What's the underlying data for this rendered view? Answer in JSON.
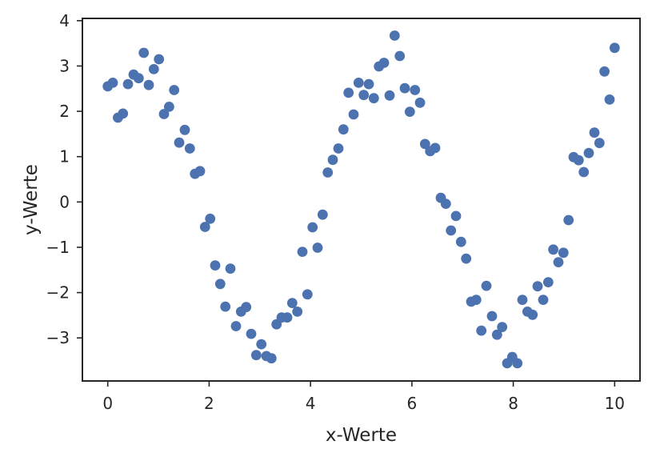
{
  "chart_data": {
    "type": "scatter",
    "title": "",
    "xlabel": "x-Werte",
    "ylabel": "y-Werte",
    "xlim": [
      -0.5,
      10.5
    ],
    "ylim": [
      -3.95,
      4.05
    ],
    "xticks": [
      0,
      2,
      4,
      6,
      8,
      10
    ],
    "xtick_labels": [
      "0",
      "2",
      "4",
      "6",
      "8",
      "10"
    ],
    "yticks": [
      -3,
      -2,
      -1,
      0,
      1,
      2,
      3,
      4
    ],
    "ytick_labels": [
      "−3",
      "−2",
      "−1",
      "0",
      "1",
      "2",
      "3",
      "4"
    ],
    "grid": false,
    "marker_color": "#4c72b0",
    "series": [
      {
        "x": [
          0.0,
          0.1,
          0.2,
          0.3,
          0.4,
          0.51,
          0.61,
          0.71,
          0.81,
          0.91,
          1.01,
          1.11,
          1.21,
          1.31,
          1.41,
          1.52,
          1.62,
          1.72,
          1.82,
          1.92,
          2.02,
          2.12,
          2.22,
          2.32,
          2.42,
          2.53,
          2.63,
          2.73,
          2.83,
          2.93,
          3.03,
          3.13,
          3.23,
          3.33,
          3.43,
          3.54,
          3.64,
          3.74,
          3.84,
          3.94,
          4.04,
          4.14,
          4.24,
          4.34,
          4.44,
          4.55,
          4.65,
          4.75,
          4.85,
          4.95,
          5.05,
          5.15,
          5.25,
          5.35,
          5.45,
          5.56,
          5.66,
          5.76,
          5.86,
          5.96,
          6.06,
          6.16,
          6.26,
          6.36,
          6.46,
          6.57,
          6.67,
          6.77,
          6.87,
          6.97,
          7.07,
          7.17,
          7.27,
          7.37,
          7.47,
          7.58,
          7.68,
          7.78,
          7.88,
          7.98,
          8.08,
          8.18,
          8.28,
          8.38,
          8.48,
          8.59,
          8.69,
          8.79,
          8.89,
          8.99,
          9.09,
          9.19,
          9.29,
          9.39,
          9.49,
          9.6,
          9.7,
          9.8,
          9.9,
          10.0
        ],
        "y": [
          2.55,
          2.63,
          1.86,
          1.95,
          2.6,
          2.81,
          2.73,
          3.29,
          2.58,
          2.93,
          3.15,
          1.94,
          2.1,
          2.47,
          1.31,
          1.59,
          1.18,
          0.62,
          0.68,
          -0.55,
          -0.37,
          -1.4,
          -1.81,
          -2.31,
          -1.47,
          -2.74,
          -2.42,
          -2.32,
          -2.91,
          -3.38,
          -3.14,
          -3.4,
          -3.45,
          -2.7,
          -2.55,
          -2.55,
          -2.23,
          -2.42,
          -1.1,
          -2.04,
          -0.56,
          -1.01,
          -0.28,
          0.65,
          0.93,
          1.18,
          1.6,
          2.41,
          1.93,
          2.63,
          2.36,
          2.6,
          2.29,
          2.99,
          3.07,
          2.35,
          3.67,
          3.22,
          2.51,
          1.99,
          2.47,
          2.19,
          1.28,
          1.12,
          1.19,
          0.09,
          -0.04,
          -0.63,
          -0.31,
          -0.88,
          -1.25,
          -2.2,
          -2.16,
          -2.84,
          -1.85,
          -2.52,
          -2.93,
          -2.76,
          -3.56,
          -3.42,
          -3.56,
          -2.16,
          -2.42,
          -2.49,
          -1.86,
          -2.16,
          -1.77,
          -1.05,
          -1.33,
          -1.12,
          -0.4,
          0.99,
          0.92,
          0.66,
          1.08,
          1.53,
          1.3,
          2.88,
          2.26,
          3.4
        ]
      }
    ]
  }
}
